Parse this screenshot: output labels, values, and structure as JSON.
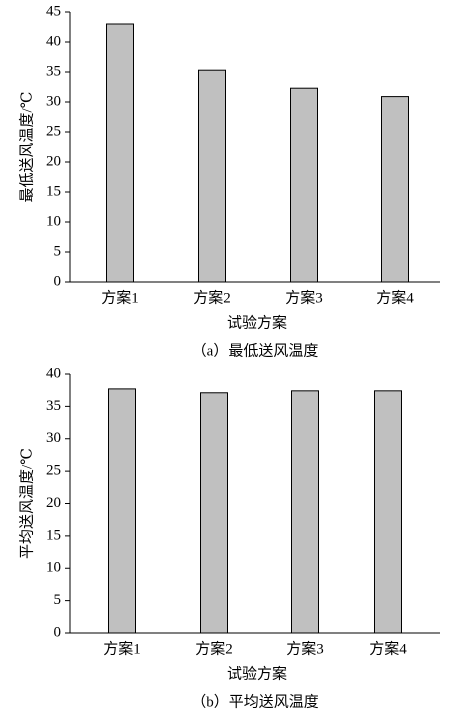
{
  "chart_data": [
    {
      "type": "bar",
      "categories": [
        "方案1",
        "方案2",
        "方案3",
        "方案4"
      ],
      "values": [
        43,
        35.3,
        32.3,
        30.9
      ],
      "color": "#c0c0c0",
      "ylim": [
        0,
        45
      ],
      "yticks": [
        0,
        5,
        10,
        15,
        20,
        25,
        30,
        35,
        40,
        45
      ],
      "y_label": "最低送风温度/℃",
      "x_label": "试验方案",
      "caption": "（a）最低送风温度"
    },
    {
      "type": "bar",
      "categories": [
        "方案1",
        "方案2",
        "方案3",
        "方案4"
      ],
      "values": [
        37.7,
        37.1,
        37.4,
        37.4
      ],
      "color": "#c0c0c0",
      "ylim": [
        0,
        40
      ],
      "yticks": [
        0,
        5,
        10,
        15,
        20,
        25,
        30,
        35,
        40
      ],
      "y_label": "平均送风温度/℃",
      "x_label": "试验方案",
      "caption": "（b）平均送风温度"
    }
  ]
}
